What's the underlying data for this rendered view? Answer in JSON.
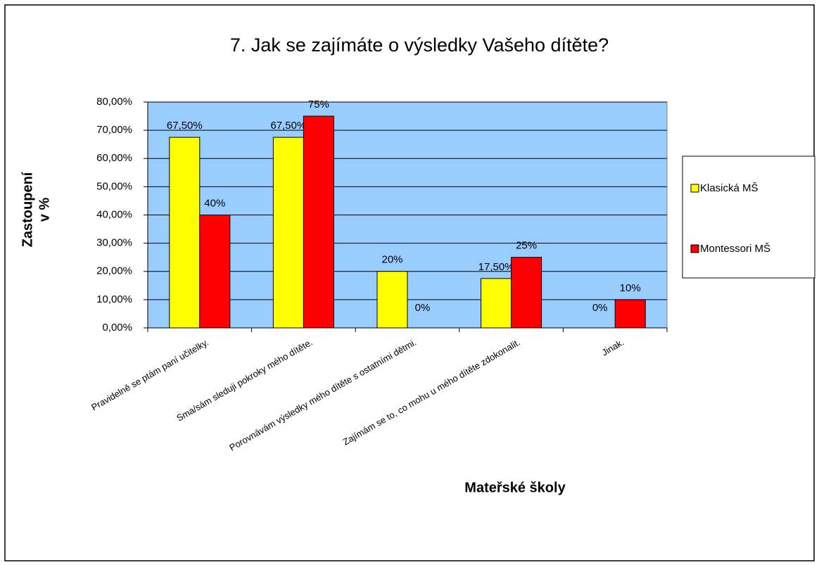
{
  "chart_data": {
    "type": "bar",
    "title": "7. Jak se zajímáte o výsledky Vašeho dítěte?",
    "y_label": [
      "Zastoupení",
      "v %"
    ],
    "x_label": "Mateřské školy",
    "categories": [
      "Pravidelně se ptám paní učitelky.",
      "Sma/sám sleduji pokroky mého dítěte.",
      "Porovnávám výsledky mého dítěte s ostatními dětmi.",
      "Zajímám se  to, co mohu u mého dítěte zdokonalit.",
      "Jinak."
    ],
    "series": [
      {
        "name": "Klasická MŠ",
        "color": "#ffff00",
        "values": [
          67.5,
          67.5,
          20,
          17.5,
          0
        ],
        "value_labels": [
          "67,50%",
          "67,50%",
          "20%",
          "17,50%",
          "0%"
        ]
      },
      {
        "name": "Montessori MŠ",
        "color": "#ff0000",
        "values": [
          40,
          75,
          0,
          25,
          10
        ],
        "value_labels": [
          "40%",
          "75%",
          "0%",
          "25%",
          "10%"
        ]
      }
    ],
    "ylim": [
      0,
      80
    ],
    "yticks": [
      {
        "value": 0,
        "label": "0,00%"
      },
      {
        "value": 10,
        "label": "10,00%"
      },
      {
        "value": 20,
        "label": "20,00%"
      },
      {
        "value": 30,
        "label": "30,00%"
      },
      {
        "value": 40,
        "label": "40,00%"
      },
      {
        "value": 50,
        "label": "50,00%"
      },
      {
        "value": 60,
        "label": "60,00%"
      },
      {
        "value": 70,
        "label": "70,00%"
      },
      {
        "value": 80,
        "label": "80,00%"
      }
    ],
    "grid": true,
    "plot_background": "#99ccff",
    "legend": "right"
  }
}
